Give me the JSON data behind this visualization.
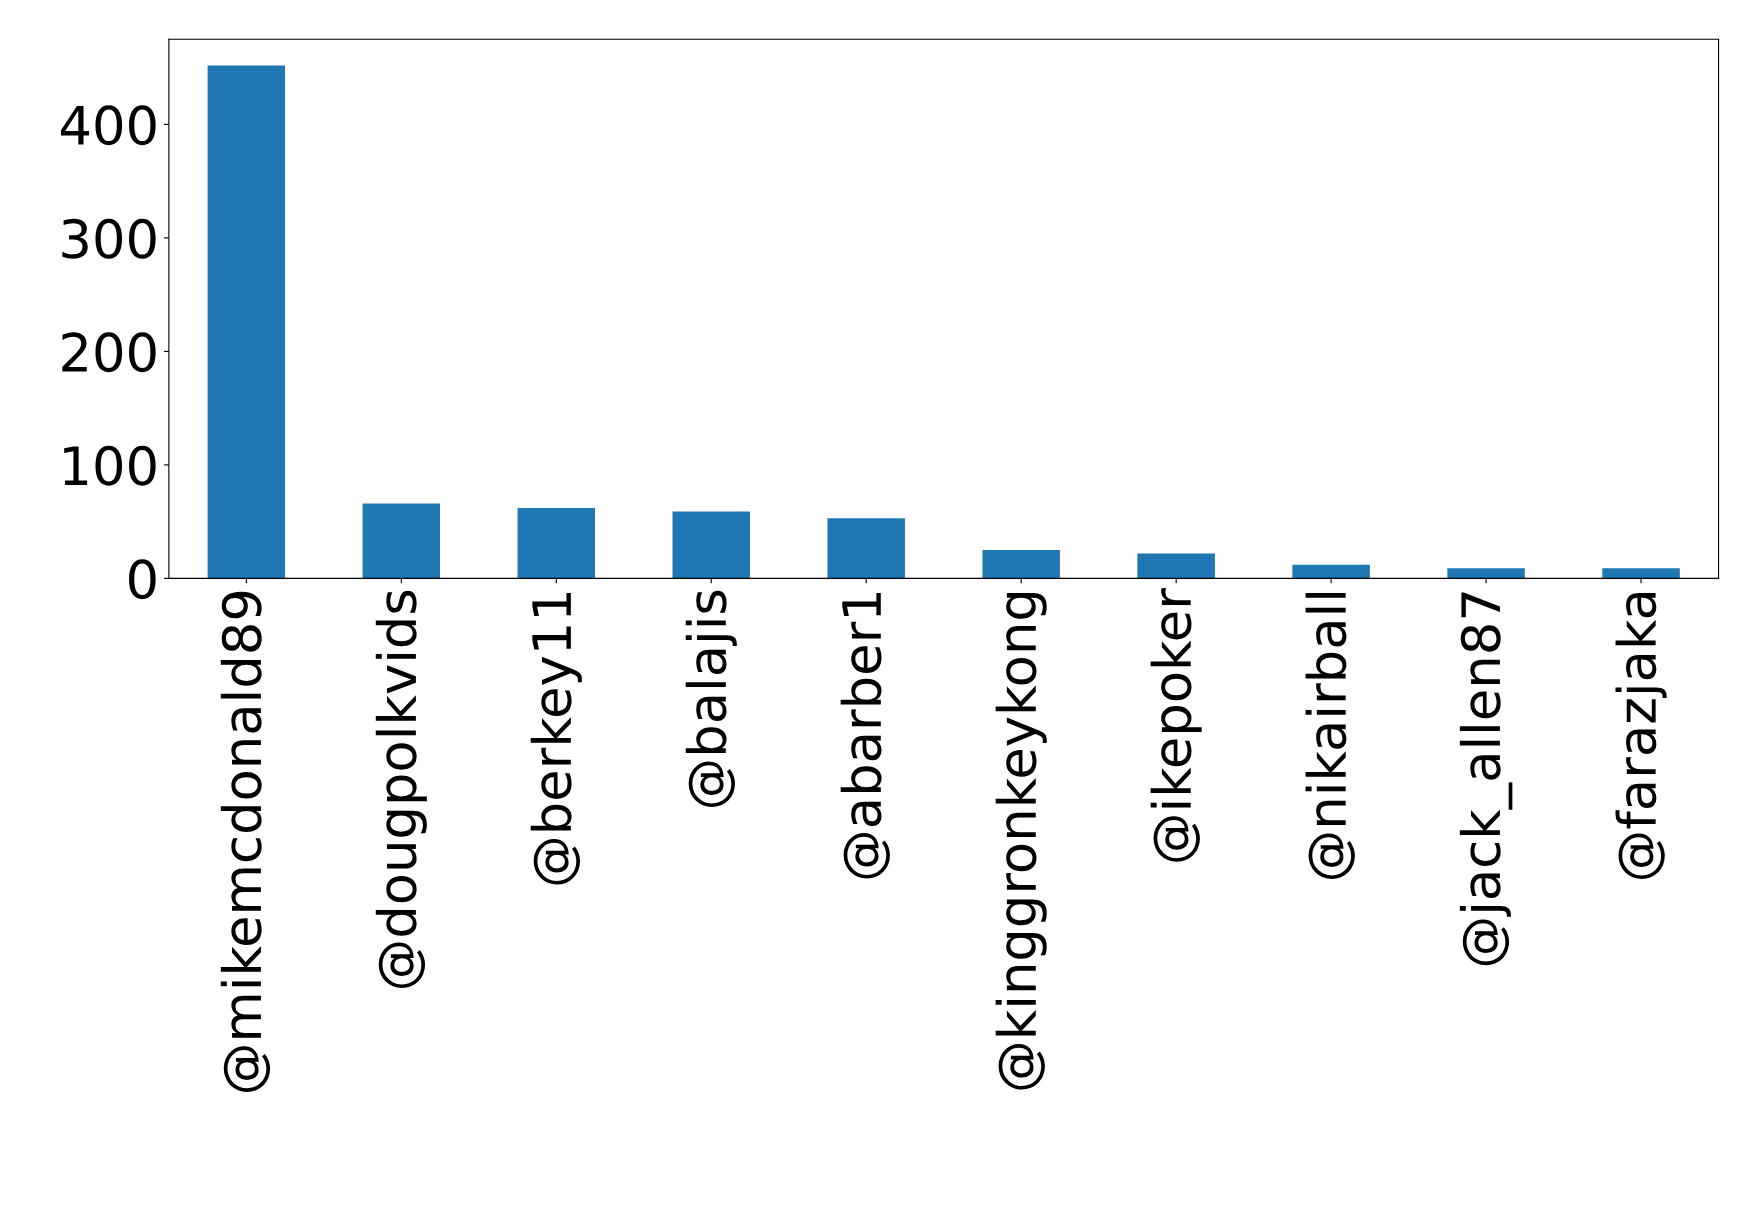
{
  "chart_data": {
    "type": "bar",
    "categories": [
      "@mikemcdonald89",
      "@dougpolkvids",
      "@berkey11",
      "@balajis",
      "@abarber1",
      "@kinggronkeykong",
      "@ikepoker",
      "@nikairball",
      "@jack_allen87",
      "@farazjaka"
    ],
    "values": [
      452,
      66,
      62,
      59,
      53,
      25,
      22,
      12,
      9,
      9
    ],
    "color": "#1f77b4",
    "ylim": [
      0,
      475
    ],
    "yticks": [
      0,
      100,
      200,
      300,
      400
    ],
    "grid": false,
    "legend": false
  }
}
